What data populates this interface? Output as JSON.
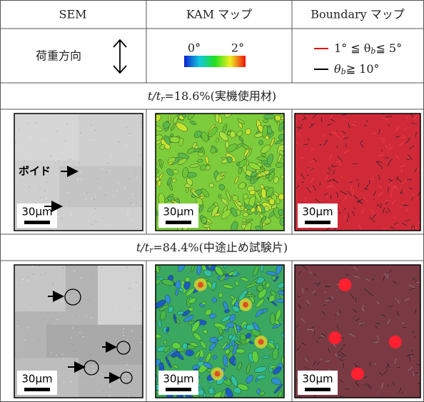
{
  "header": {
    "columns": [
      "SEM",
      "KAM マップ",
      "Boundary マップ"
    ]
  },
  "legend": {
    "load_direction": "荷重方向",
    "kam_min": "0°",
    "kam_max": "2°",
    "boundary_low": {
      "pre": "1° ≦ θ",
      "sub": "b",
      "post": "≦ 5°"
    },
    "boundary_high": {
      "pre": "θ",
      "sub": "b",
      "post": "≧ 10°"
    }
  },
  "sections": [
    {
      "label": {
        "var": "t/t",
        "sub": "r",
        "rest": "=18.6%(実機使用材)"
      },
      "void_label": "ボイド",
      "scale_bars": [
        "30μm",
        "30μm",
        "30μm"
      ]
    },
    {
      "label": {
        "var": "t/t",
        "sub": "r",
        "rest": "=84.4%(中途止め試験片)"
      },
      "scale_bars": [
        "30μm",
        "30μm",
        "30μm"
      ]
    }
  ]
}
